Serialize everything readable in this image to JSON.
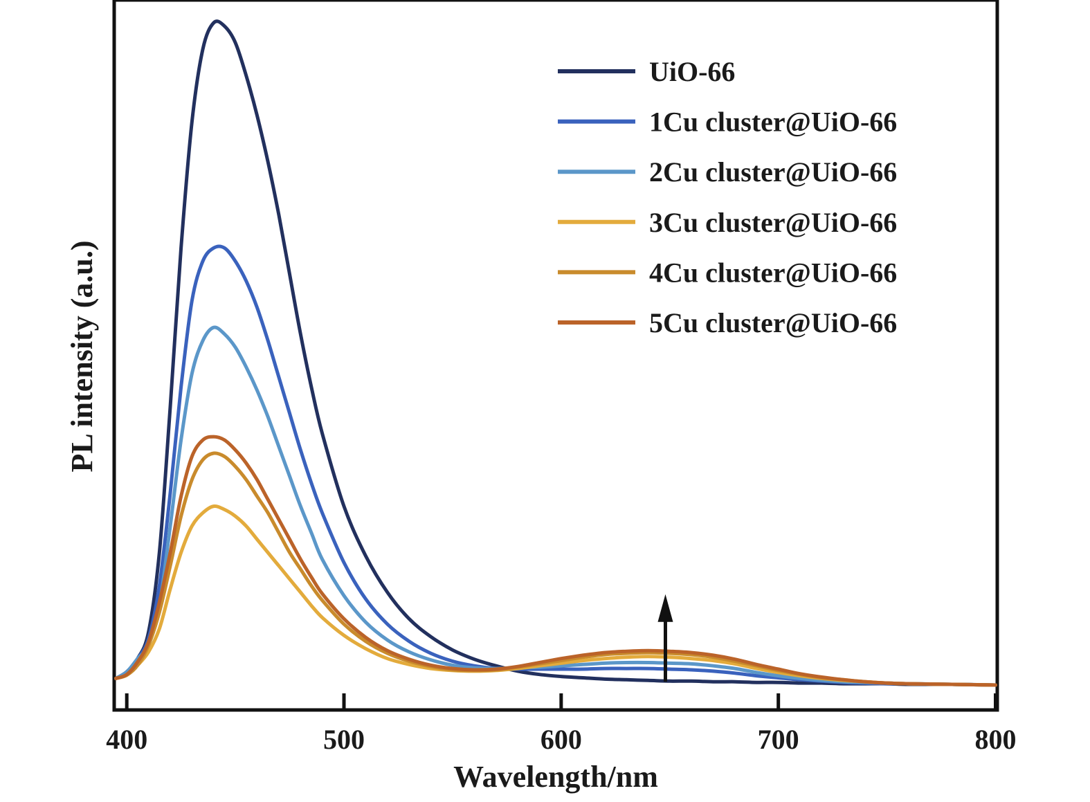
{
  "chart_data": {
    "type": "line",
    "title": "",
    "xlabel": "Wavelength/nm",
    "ylabel": "PL intensity (a.u.)",
    "xlim": [
      395,
      800
    ],
    "ylim": [
      0,
      1.04
    ],
    "x_ticks": [
      {
        "value": 400,
        "label": "400"
      },
      {
        "value": 500,
        "label": "500"
      },
      {
        "value": 600,
        "label": "600"
      },
      {
        "value": 700,
        "label": "700"
      },
      {
        "value": 800,
        "label": "800"
      }
    ],
    "y_ticks_shown": false,
    "grid": false,
    "legend": "top-right",
    "annotation": {
      "type": "arrow",
      "direction": "up",
      "x": 648,
      "y_from": 0.005,
      "y_to": 0.135
    },
    "x": [
      395,
      400,
      405,
      410,
      415,
      420,
      425,
      430,
      435,
      440,
      445,
      450,
      455,
      460,
      465,
      470,
      475,
      480,
      485,
      490,
      500,
      510,
      520,
      530,
      540,
      550,
      560,
      570,
      580,
      590,
      600,
      610,
      620,
      630,
      640,
      650,
      660,
      670,
      680,
      690,
      700,
      710,
      720,
      730,
      740,
      750,
      760,
      780,
      800
    ],
    "series": [
      {
        "name": "UiO-66",
        "color": "#22305e",
        "values": [
          0.01,
          0.02,
          0.04,
          0.08,
          0.2,
          0.42,
          0.66,
          0.85,
          0.96,
          1.0,
          0.995,
          0.97,
          0.92,
          0.86,
          0.79,
          0.71,
          0.62,
          0.53,
          0.45,
          0.38,
          0.27,
          0.195,
          0.14,
          0.1,
          0.073,
          0.053,
          0.039,
          0.029,
          0.021,
          0.016,
          0.013,
          0.011,
          0.009,
          0.008,
          0.007,
          0.006,
          0.006,
          0.005,
          0.005,
          0.004,
          0.004,
          0.003,
          0.003,
          0.002,
          0.002,
          0.002,
          0.001,
          0.001,
          0.0
        ]
      },
      {
        "name": "1Cu cluster@UiO-66",
        "color": "#3a62bd",
        "values": [
          0.01,
          0.02,
          0.04,
          0.07,
          0.15,
          0.29,
          0.45,
          0.58,
          0.64,
          0.66,
          0.66,
          0.64,
          0.61,
          0.57,
          0.52,
          0.465,
          0.41,
          0.355,
          0.305,
          0.26,
          0.185,
          0.13,
          0.092,
          0.066,
          0.048,
          0.036,
          0.029,
          0.025,
          0.024,
          0.024,
          0.024,
          0.024,
          0.025,
          0.025,
          0.025,
          0.024,
          0.023,
          0.021,
          0.018,
          0.014,
          0.011,
          0.008,
          0.006,
          0.004,
          0.003,
          0.002,
          0.002,
          0.001,
          0.0
        ]
      },
      {
        "name": "2Cu cluster@UiO-66",
        "color": "#5b97c9",
        "values": [
          0.01,
          0.02,
          0.04,
          0.06,
          0.12,
          0.24,
          0.37,
          0.47,
          0.52,
          0.54,
          0.53,
          0.51,
          0.48,
          0.445,
          0.405,
          0.36,
          0.315,
          0.27,
          0.23,
          0.19,
          0.135,
          0.095,
          0.068,
          0.05,
          0.038,
          0.03,
          0.026,
          0.025,
          0.026,
          0.027,
          0.029,
          0.031,
          0.033,
          0.034,
          0.034,
          0.033,
          0.032,
          0.029,
          0.025,
          0.019,
          0.014,
          0.01,
          0.007,
          0.005,
          0.004,
          0.003,
          0.002,
          0.001,
          0.0
        ]
      },
      {
        "name": "3Cu cluster@UiO-66",
        "color": "#e3ab3c",
        "values": [
          0.01,
          0.015,
          0.03,
          0.05,
          0.085,
          0.145,
          0.2,
          0.24,
          0.26,
          0.27,
          0.265,
          0.255,
          0.24,
          0.22,
          0.2,
          0.18,
          0.16,
          0.14,
          0.12,
          0.102,
          0.075,
          0.055,
          0.04,
          0.031,
          0.025,
          0.022,
          0.021,
          0.022,
          0.025,
          0.029,
          0.033,
          0.037,
          0.04,
          0.042,
          0.043,
          0.042,
          0.04,
          0.037,
          0.032,
          0.025,
          0.019,
          0.014,
          0.01,
          0.007,
          0.005,
          0.003,
          0.002,
          0.001,
          0.0
        ]
      },
      {
        "name": "4Cu cluster@UiO-66",
        "color": "#c98b2c",
        "values": [
          0.01,
          0.015,
          0.03,
          0.06,
          0.11,
          0.18,
          0.255,
          0.31,
          0.34,
          0.35,
          0.345,
          0.33,
          0.31,
          0.285,
          0.26,
          0.23,
          0.2,
          0.175,
          0.15,
          0.128,
          0.092,
          0.066,
          0.048,
          0.036,
          0.028,
          0.023,
          0.022,
          0.023,
          0.027,
          0.032,
          0.037,
          0.042,
          0.046,
          0.048,
          0.049,
          0.048,
          0.046,
          0.042,
          0.036,
          0.029,
          0.022,
          0.016,
          0.011,
          0.008,
          0.005,
          0.003,
          0.002,
          0.001,
          0.0
        ]
      },
      {
        "name": "5Cu cluster@UiO-66",
        "color": "#bb6329",
        "values": [
          0.01,
          0.016,
          0.035,
          0.065,
          0.125,
          0.2,
          0.285,
          0.345,
          0.37,
          0.375,
          0.37,
          0.355,
          0.335,
          0.31,
          0.28,
          0.25,
          0.22,
          0.19,
          0.163,
          0.138,
          0.1,
          0.072,
          0.052,
          0.039,
          0.03,
          0.025,
          0.023,
          0.024,
          0.028,
          0.034,
          0.04,
          0.045,
          0.049,
          0.051,
          0.052,
          0.051,
          0.049,
          0.045,
          0.039,
          0.031,
          0.024,
          0.017,
          0.012,
          0.008,
          0.005,
          0.003,
          0.002,
          0.001,
          0.0
        ]
      }
    ]
  }
}
